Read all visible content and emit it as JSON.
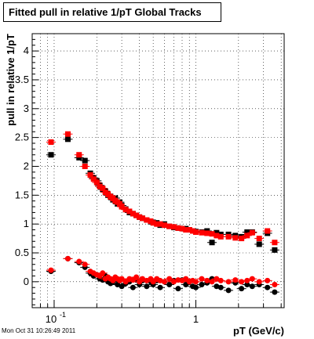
{
  "title": "Fitted pull in relative 1/pT  Global Tracks",
  "timestamp": "Mon Oct 31 10:26:49 2011",
  "colors": {
    "series_black": "#000000",
    "series_red": "#ff0000",
    "grid": "#000000"
  },
  "chart_data": {
    "type": "scatter",
    "title": "Fitted pull in relative 1/pT  Global Tracks",
    "xlabel": "pT (GeV/c)",
    "ylabel": "pull in relative 1/pT",
    "xscale": "log",
    "xlim": [
      0.07,
      4.2
    ],
    "ylim": [
      -0.45,
      4.3
    ],
    "grid": true,
    "x_tick_labels": [
      {
        "value": 0.1,
        "label": "10",
        "sup": "-1"
      },
      {
        "value": 1,
        "label": "1",
        "sup": ""
      }
    ],
    "y_ticks": [
      0,
      0.5,
      1,
      1.5,
      2,
      2.5,
      3,
      3.5,
      4
    ],
    "y_tick_labels": [
      "0",
      "0.5",
      "1",
      "1.5",
      "2",
      "2.5",
      "3",
      "3.5",
      "4"
    ],
    "series": [
      {
        "marker": "square",
        "color": "#000000",
        "x": [
          0.095,
          0.125,
          0.15,
          0.165,
          0.18,
          0.19,
          0.2,
          0.21,
          0.22,
          0.23,
          0.24,
          0.25,
          0.26,
          0.27,
          0.28,
          0.29,
          0.3,
          0.32,
          0.34,
          0.36,
          0.38,
          0.4,
          0.42,
          0.45,
          0.48,
          0.5,
          0.53,
          0.56,
          0.6,
          0.65,
          0.7,
          0.75,
          0.8,
          0.85,
          0.9,
          0.95,
          1.0,
          1.1,
          1.2,
          1.3,
          1.4,
          1.5,
          1.7,
          1.9,
          2.1,
          2.3,
          2.5,
          2.8,
          3.2,
          3.6
        ],
        "y": [
          2.2,
          2.47,
          2.15,
          2.1,
          1.88,
          1.8,
          1.75,
          1.67,
          1.6,
          1.57,
          1.5,
          1.48,
          1.42,
          1.45,
          1.35,
          1.38,
          1.32,
          1.26,
          1.2,
          1.18,
          1.15,
          1.12,
          1.1,
          1.07,
          1.04,
          1.03,
          1.02,
          0.98,
          1.0,
          0.96,
          0.94,
          0.93,
          0.92,
          0.92,
          0.9,
          0.88,
          0.87,
          0.86,
          0.88,
          0.68,
          0.85,
          0.82,
          0.82,
          0.8,
          0.78,
          0.86,
          0.86,
          0.65,
          0.84,
          0.55
        ]
      },
      {
        "marker": "square",
        "color": "#ff0000",
        "x": [
          0.095,
          0.125,
          0.15,
          0.165,
          0.18,
          0.19,
          0.2,
          0.21,
          0.22,
          0.23,
          0.24,
          0.25,
          0.26,
          0.27,
          0.28,
          0.29,
          0.3,
          0.32,
          0.34,
          0.36,
          0.38,
          0.4,
          0.42,
          0.45,
          0.48,
          0.5,
          0.53,
          0.56,
          0.6,
          0.65,
          0.7,
          0.75,
          0.8,
          0.85,
          0.9,
          0.95,
          1.0,
          1.1,
          1.2,
          1.3,
          1.4,
          1.5,
          1.7,
          1.9,
          2.1,
          2.3,
          2.5,
          2.8,
          3.2,
          3.6
        ],
        "y": [
          2.42,
          2.56,
          2.2,
          2.0,
          1.85,
          1.78,
          1.72,
          1.65,
          1.62,
          1.55,
          1.52,
          1.47,
          1.45,
          1.4,
          1.38,
          1.35,
          1.3,
          1.25,
          1.22,
          1.18,
          1.15,
          1.12,
          1.1,
          1.07,
          1.05,
          1.02,
          1.0,
          1.0,
          0.98,
          0.96,
          0.95,
          0.93,
          0.92,
          0.9,
          0.9,
          0.88,
          0.86,
          0.85,
          0.84,
          0.83,
          0.8,
          0.78,
          0.78,
          0.76,
          0.75,
          0.8,
          0.85,
          0.75,
          0.88,
          0.68
        ]
      },
      {
        "marker": "circle",
        "color": "#000000",
        "x": [
          0.095,
          0.125,
          0.15,
          0.165,
          0.18,
          0.19,
          0.2,
          0.21,
          0.22,
          0.23,
          0.24,
          0.25,
          0.26,
          0.27,
          0.28,
          0.29,
          0.3,
          0.32,
          0.34,
          0.36,
          0.38,
          0.4,
          0.42,
          0.45,
          0.48,
          0.5,
          0.53,
          0.56,
          0.6,
          0.65,
          0.7,
          0.75,
          0.8,
          0.85,
          0.9,
          0.95,
          1.0,
          1.1,
          1.2,
          1.3,
          1.4,
          1.5,
          1.7,
          1.9,
          2.1,
          2.3,
          2.5,
          2.8,
          3.2,
          3.6
        ],
        "y": [
          0.18,
          0.4,
          0.33,
          0.25,
          0.15,
          0.1,
          0.12,
          0.05,
          0.03,
          0.1,
          0.0,
          -0.03,
          0.0,
          0.05,
          -0.05,
          0.02,
          -0.08,
          -0.03,
          0.0,
          -0.1,
          0.03,
          -0.05,
          0.02,
          -0.08,
          0.0,
          -0.05,
          0.02,
          -0.1,
          0.0,
          -0.05,
          0.02,
          -0.12,
          0.03,
          -0.05,
          0.0,
          -0.08,
          -0.1,
          -0.05,
          -0.02,
          0.05,
          -0.08,
          -0.1,
          -0.15,
          -0.02,
          -0.12,
          -0.05,
          -0.08,
          -0.05,
          -0.1,
          -0.18
        ]
      },
      {
        "marker": "circle",
        "color": "#ff0000",
        "x": [
          0.095,
          0.125,
          0.15,
          0.165,
          0.18,
          0.19,
          0.2,
          0.21,
          0.22,
          0.23,
          0.24,
          0.25,
          0.26,
          0.27,
          0.28,
          0.29,
          0.3,
          0.32,
          0.34,
          0.36,
          0.38,
          0.4,
          0.42,
          0.45,
          0.48,
          0.5,
          0.53,
          0.56,
          0.6,
          0.65,
          0.7,
          0.75,
          0.8,
          0.85,
          0.9,
          0.95,
          1.0,
          1.1,
          1.2,
          1.3,
          1.4,
          1.5,
          1.7,
          1.9,
          2.1,
          2.3,
          2.5,
          2.8,
          3.2,
          3.6
        ],
        "y": [
          0.2,
          0.4,
          0.35,
          0.3,
          0.18,
          0.15,
          0.12,
          0.1,
          0.15,
          0.05,
          0.08,
          0.05,
          0.02,
          0.08,
          0.05,
          0.02,
          0.05,
          0.0,
          0.05,
          0.03,
          0.08,
          0.0,
          0.05,
          0.02,
          0.05,
          0.0,
          0.05,
          0.02,
          0.0,
          0.05,
          0.0,
          0.03,
          0.02,
          0.05,
          0.0,
          0.02,
          0.0,
          0.05,
          0.02,
          0.0,
          0.05,
          0.02,
          0.0,
          0.03,
          0.0,
          0.02,
          0.05,
          0.0,
          0.02,
          -0.05
        ]
      }
    ]
  }
}
